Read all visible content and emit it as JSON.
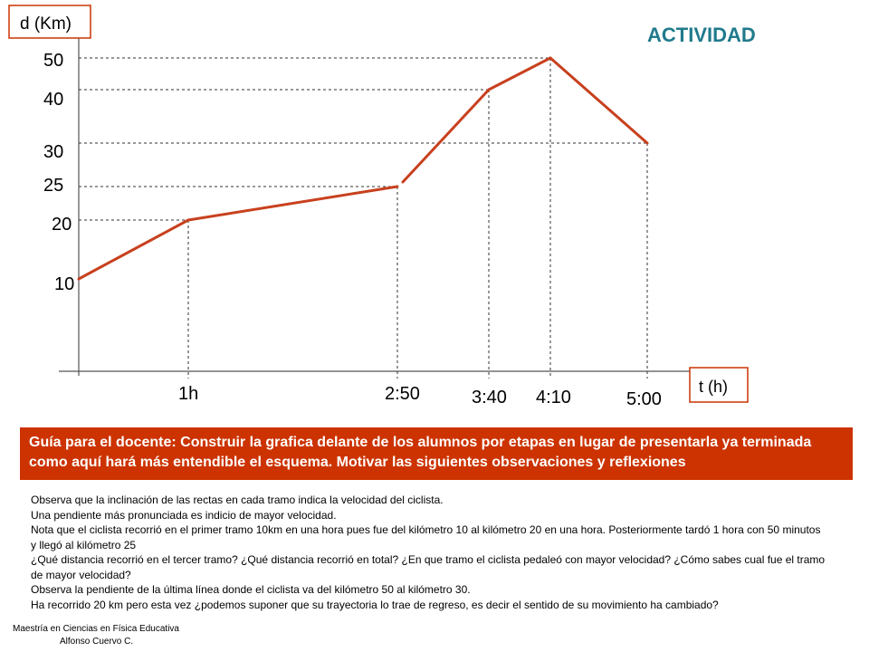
{
  "chart_data": {
    "type": "line",
    "title": "",
    "xlabel": "t (h)",
    "ylabel": "d (Km)",
    "series": [
      {
        "x": [
          "0:00",
          "1:00",
          "2:50",
          "3:40",
          "4:10",
          "5:00"
        ],
        "y": [
          10,
          20,
          25,
          40,
          50,
          30
        ]
      }
    ],
    "x_tick_labels": [
      "1h",
      "2:50",
      "3:40",
      "4:10",
      "5:00"
    ],
    "y_tick_labels": [
      "10",
      "20",
      "25",
      "30",
      "40",
      "50"
    ],
    "line_color": "#c8401e",
    "grid": false
  },
  "activity_title": "ACTIVIDAD",
  "guide_text": "Guía para el docente: Construir la grafica delante de los alumnos por etapas en lugar de presentarla ya terminada como aquí hará más entendible el esquema. Motivar las siguientes observaciones y reflexiones",
  "notes": [
    "Observa que la inclinación de las rectas en cada tramo indica la velocidad del ciclista.",
    "Una pendiente más pronunciada es indicio de mayor velocidad.",
    "Nota que el ciclista recorrió en el primer tramo 10km en una hora pues fue del kilómetro 10 al kilómetro 20 en una hora. Posteriormente tardó 1 hora con 50 minutos y llegó al kilómetro 25",
    "¿Qué distancia recorrió en el tercer tramo? ¿Qué distancia recorrió en total? ¿En que tramo el ciclista pedaleó con mayor velocidad? ¿Cómo sabes cual fue el tramo de mayor velocidad?",
    "Observa la pendiente de la última línea donde el ciclista va del kilómetro 50 al kilómetro 30.",
    "Ha recorrido 20 km pero esta vez ¿podemos suponer que su trayectoria lo trae de regreso, es decir el sentido de su movimiento ha cambiado?"
  ],
  "footer": {
    "line1": "Maestría en Ciencias en Física Educativa",
    "line2": "Alfonso Cuervo C."
  }
}
